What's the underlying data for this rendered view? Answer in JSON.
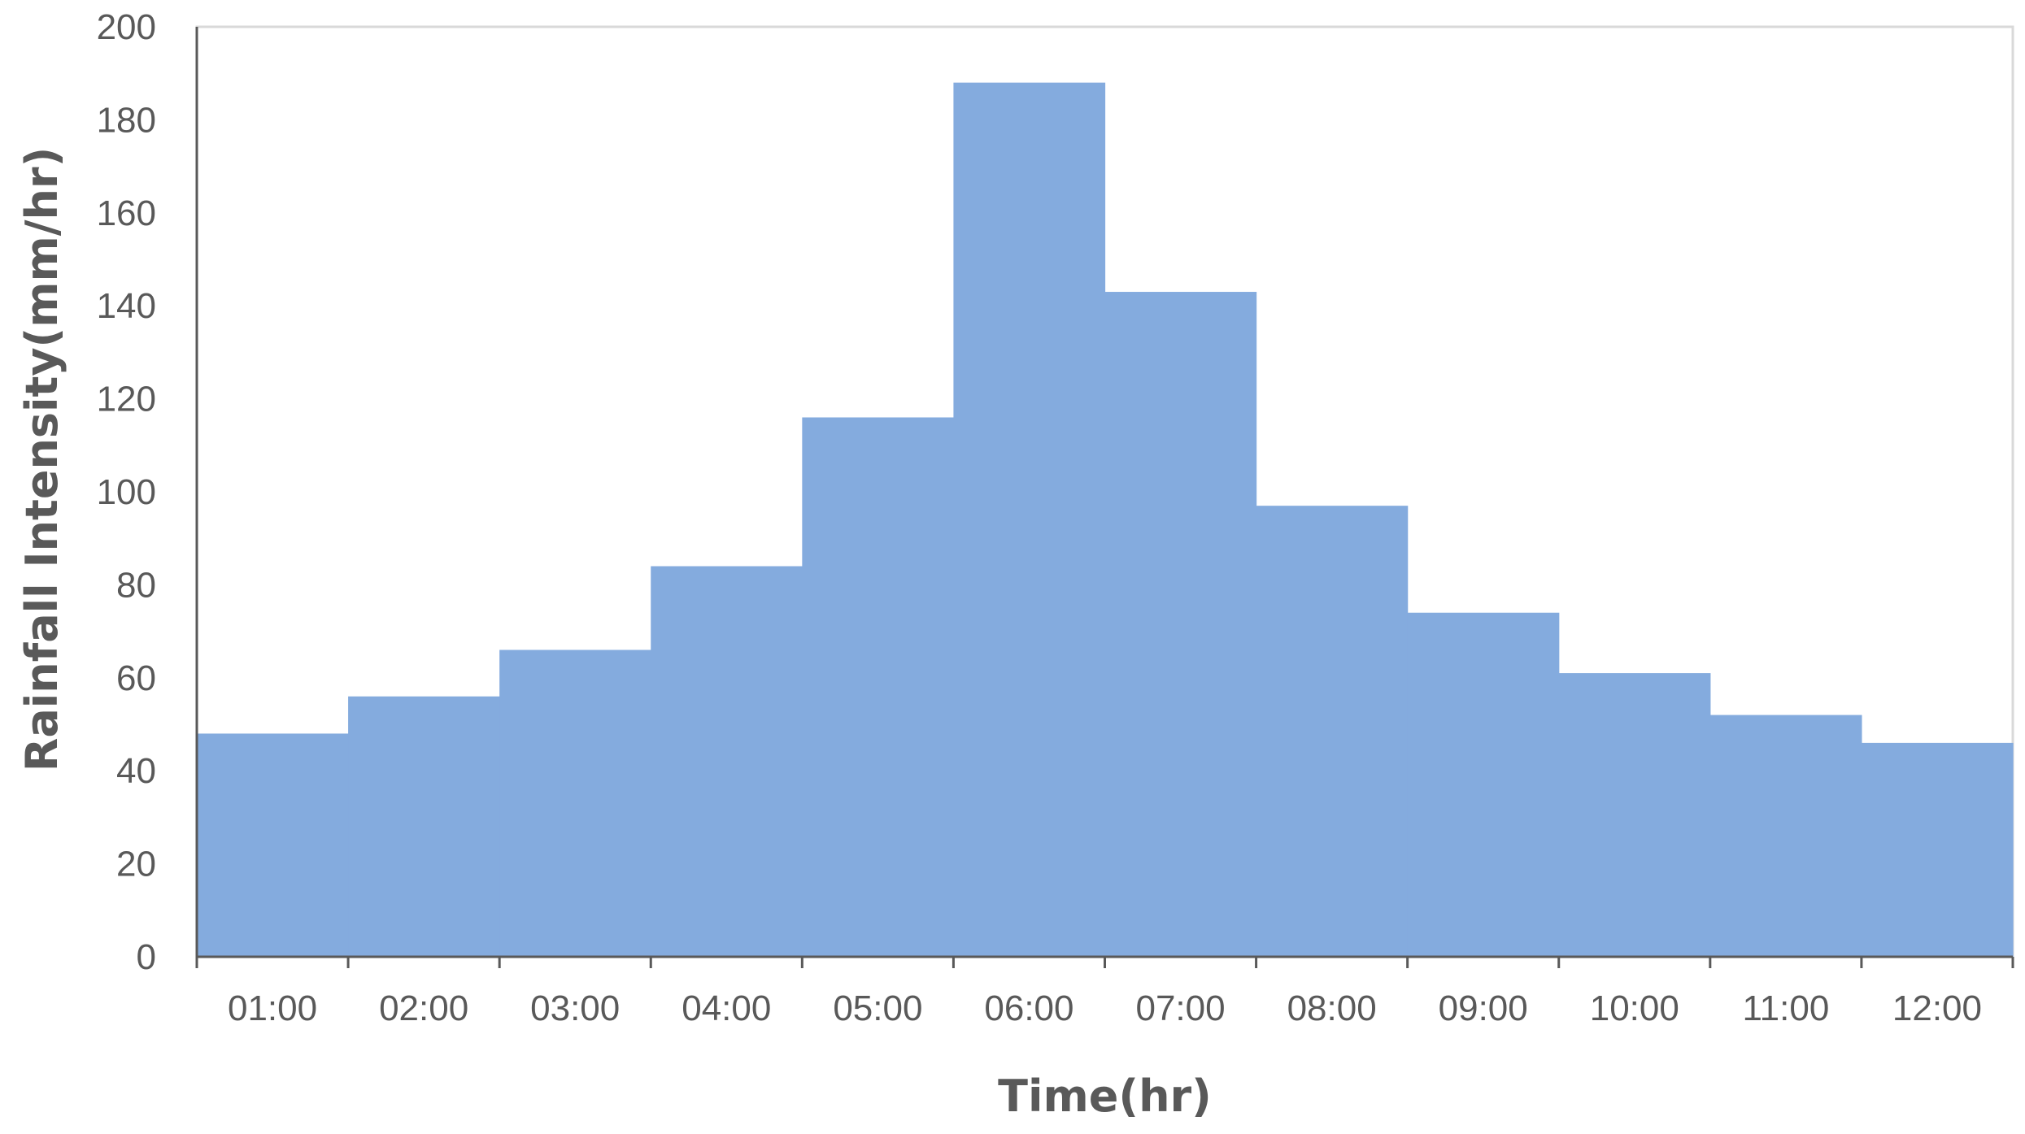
{
  "chart_data": {
    "type": "bar",
    "title": "",
    "xlabel": "Time(hr)",
    "ylabel": "Rainfall Intensity(mm/hr)",
    "categories": [
      "01:00",
      "02:00",
      "03:00",
      "04:00",
      "05:00",
      "06:00",
      "07:00",
      "08:00",
      "09:00",
      "10:00",
      "11:00",
      "12:00"
    ],
    "values": [
      48,
      56,
      66,
      84,
      116,
      188,
      143,
      97,
      74,
      61,
      52,
      46
    ],
    "ylim": [
      0,
      200
    ],
    "yticks": [
      "0",
      "20",
      "40",
      "60",
      "80",
      "100",
      "120",
      "140",
      "160",
      "180",
      "200"
    ],
    "grid": false,
    "legend": "none",
    "bar_color": "#84ABDE",
    "axis_color": "#595959",
    "frame_color": "#D9D9D9"
  }
}
